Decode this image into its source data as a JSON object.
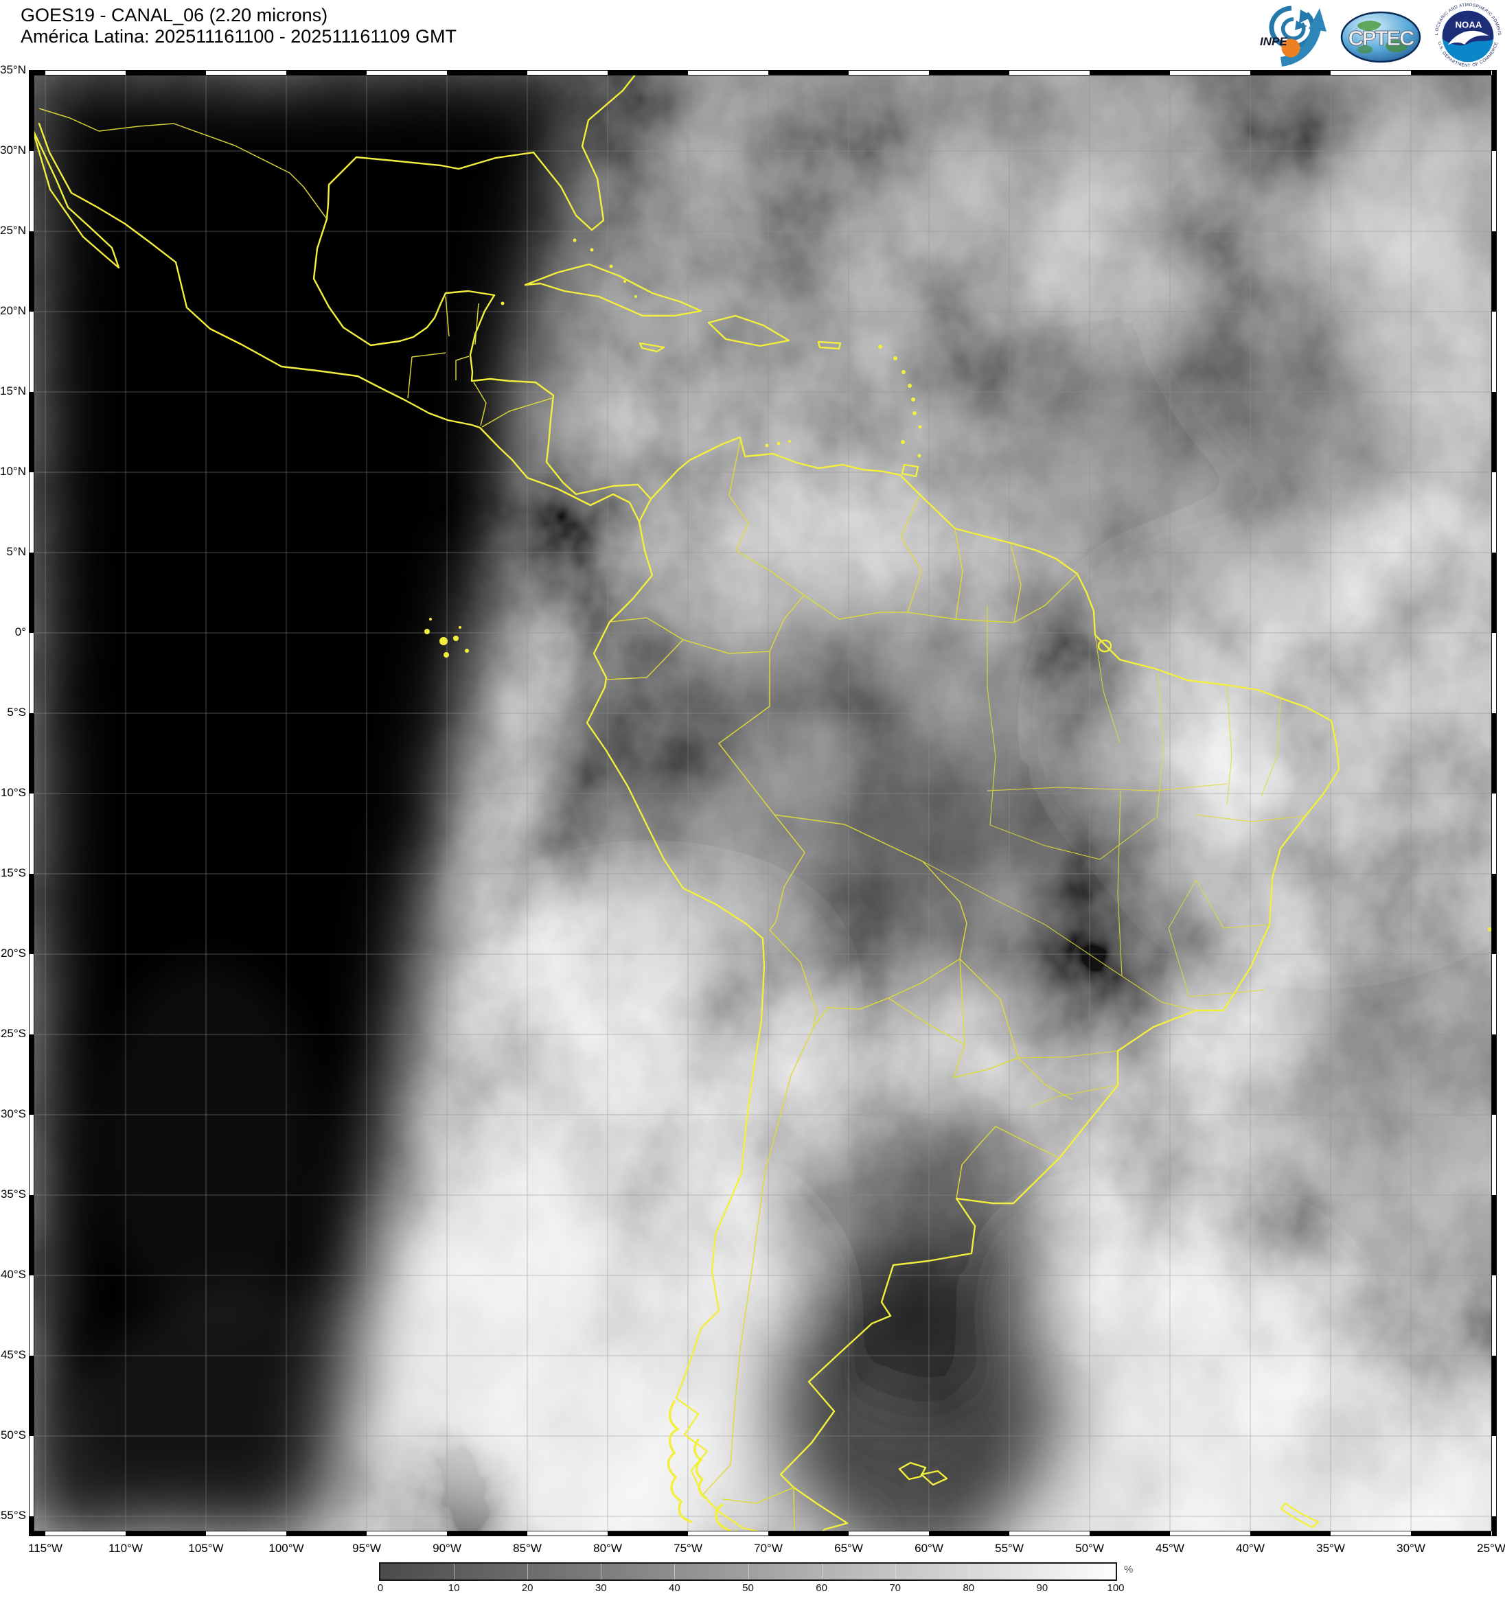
{
  "header": {
    "title": "GOES19 - CANAL_06 (2.20 microns)",
    "subtitle": "América Latina: 202511161100 - 202511161109 GMT"
  },
  "logos": {
    "inpe": "INPE",
    "cptec": "CPTEC",
    "noaa": "NOAA",
    "noaa_ring_top": "NATIONAL OCEANIC AND ATMOSPHERIC ADMINISTRATION",
    "noaa_ring_bottom": "U.S. DEPARTMENT OF COMMERCE"
  },
  "map": {
    "lat_labels": [
      "35°N",
      "30°N",
      "25°N",
      "20°N",
      "15°N",
      "10°N",
      "5°N",
      "0°",
      "5°S",
      "10°S",
      "15°S",
      "20°S",
      "25°S",
      "30°S",
      "35°S",
      "40°S",
      "45°S",
      "50°S",
      "55°S"
    ],
    "lon_labels": [
      "115°W",
      "110°W",
      "105°W",
      "100°W",
      "95°W",
      "90°W",
      "85°W",
      "80°W",
      "75°W",
      "70°W",
      "65°W",
      "60°W",
      "55°W",
      "50°W",
      "45°W",
      "40°W",
      "35°W",
      "30°W",
      "25°W"
    ],
    "coastline_color": "#f3ef3d",
    "grid_color": "#8f8f8f",
    "night_color": "#000000"
  },
  "colorbar": {
    "tick_labels": [
      "0",
      "10",
      "20",
      "30",
      "40",
      "50",
      "60",
      "70",
      "80",
      "90",
      "100"
    ],
    "unit": "%",
    "min_color": "#4b4b4b",
    "max_color": "#fdfdfd"
  }
}
